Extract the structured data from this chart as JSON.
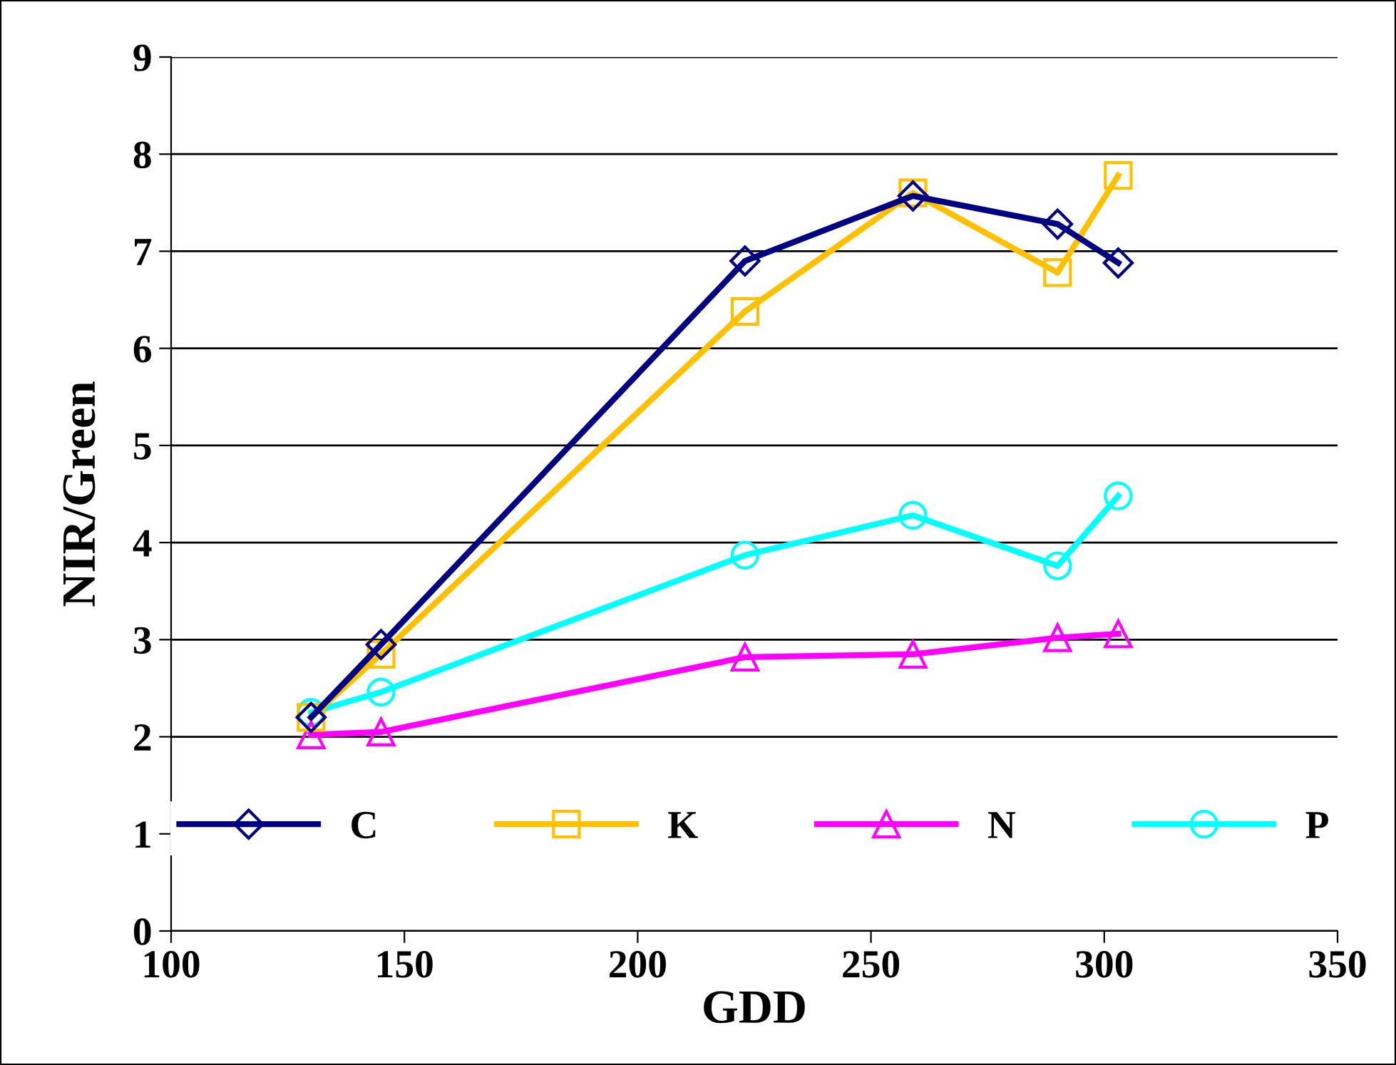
{
  "chart_data": {
    "type": "line",
    "xlabel": "GDD",
    "ylabel": "NIR/Green",
    "x": [
      130,
      145,
      223,
      259,
      290,
      303
    ],
    "series": [
      {
        "name": "C",
        "color": "#000080",
        "marker": "diamond",
        "values": [
          2.2,
          2.95,
          6.9,
          7.57,
          7.28,
          6.88
        ]
      },
      {
        "name": "K",
        "color": "#ffc000",
        "marker": "square",
        "values": [
          2.2,
          2.85,
          6.38,
          7.6,
          6.78,
          7.78
        ]
      },
      {
        "name": "N",
        "color": "#ff00ff",
        "marker": "triangle",
        "values": [
          2.02,
          2.05,
          2.82,
          2.85,
          3.02,
          3.06
        ]
      },
      {
        "name": "P",
        "color": "#00ffff",
        "marker": "circle",
        "values": [
          2.25,
          2.46,
          3.87,
          4.28,
          3.76,
          4.48
        ]
      }
    ],
    "xlim": [
      100,
      350
    ],
    "xticks": [
      100,
      150,
      200,
      250,
      300,
      350
    ],
    "ylim": [
      0,
      9
    ],
    "yticks": [
      0,
      1,
      2,
      3,
      4,
      5,
      6,
      7,
      8,
      9
    ],
    "grid": "y",
    "legend": "bottom",
    "line_style": "solid"
  }
}
